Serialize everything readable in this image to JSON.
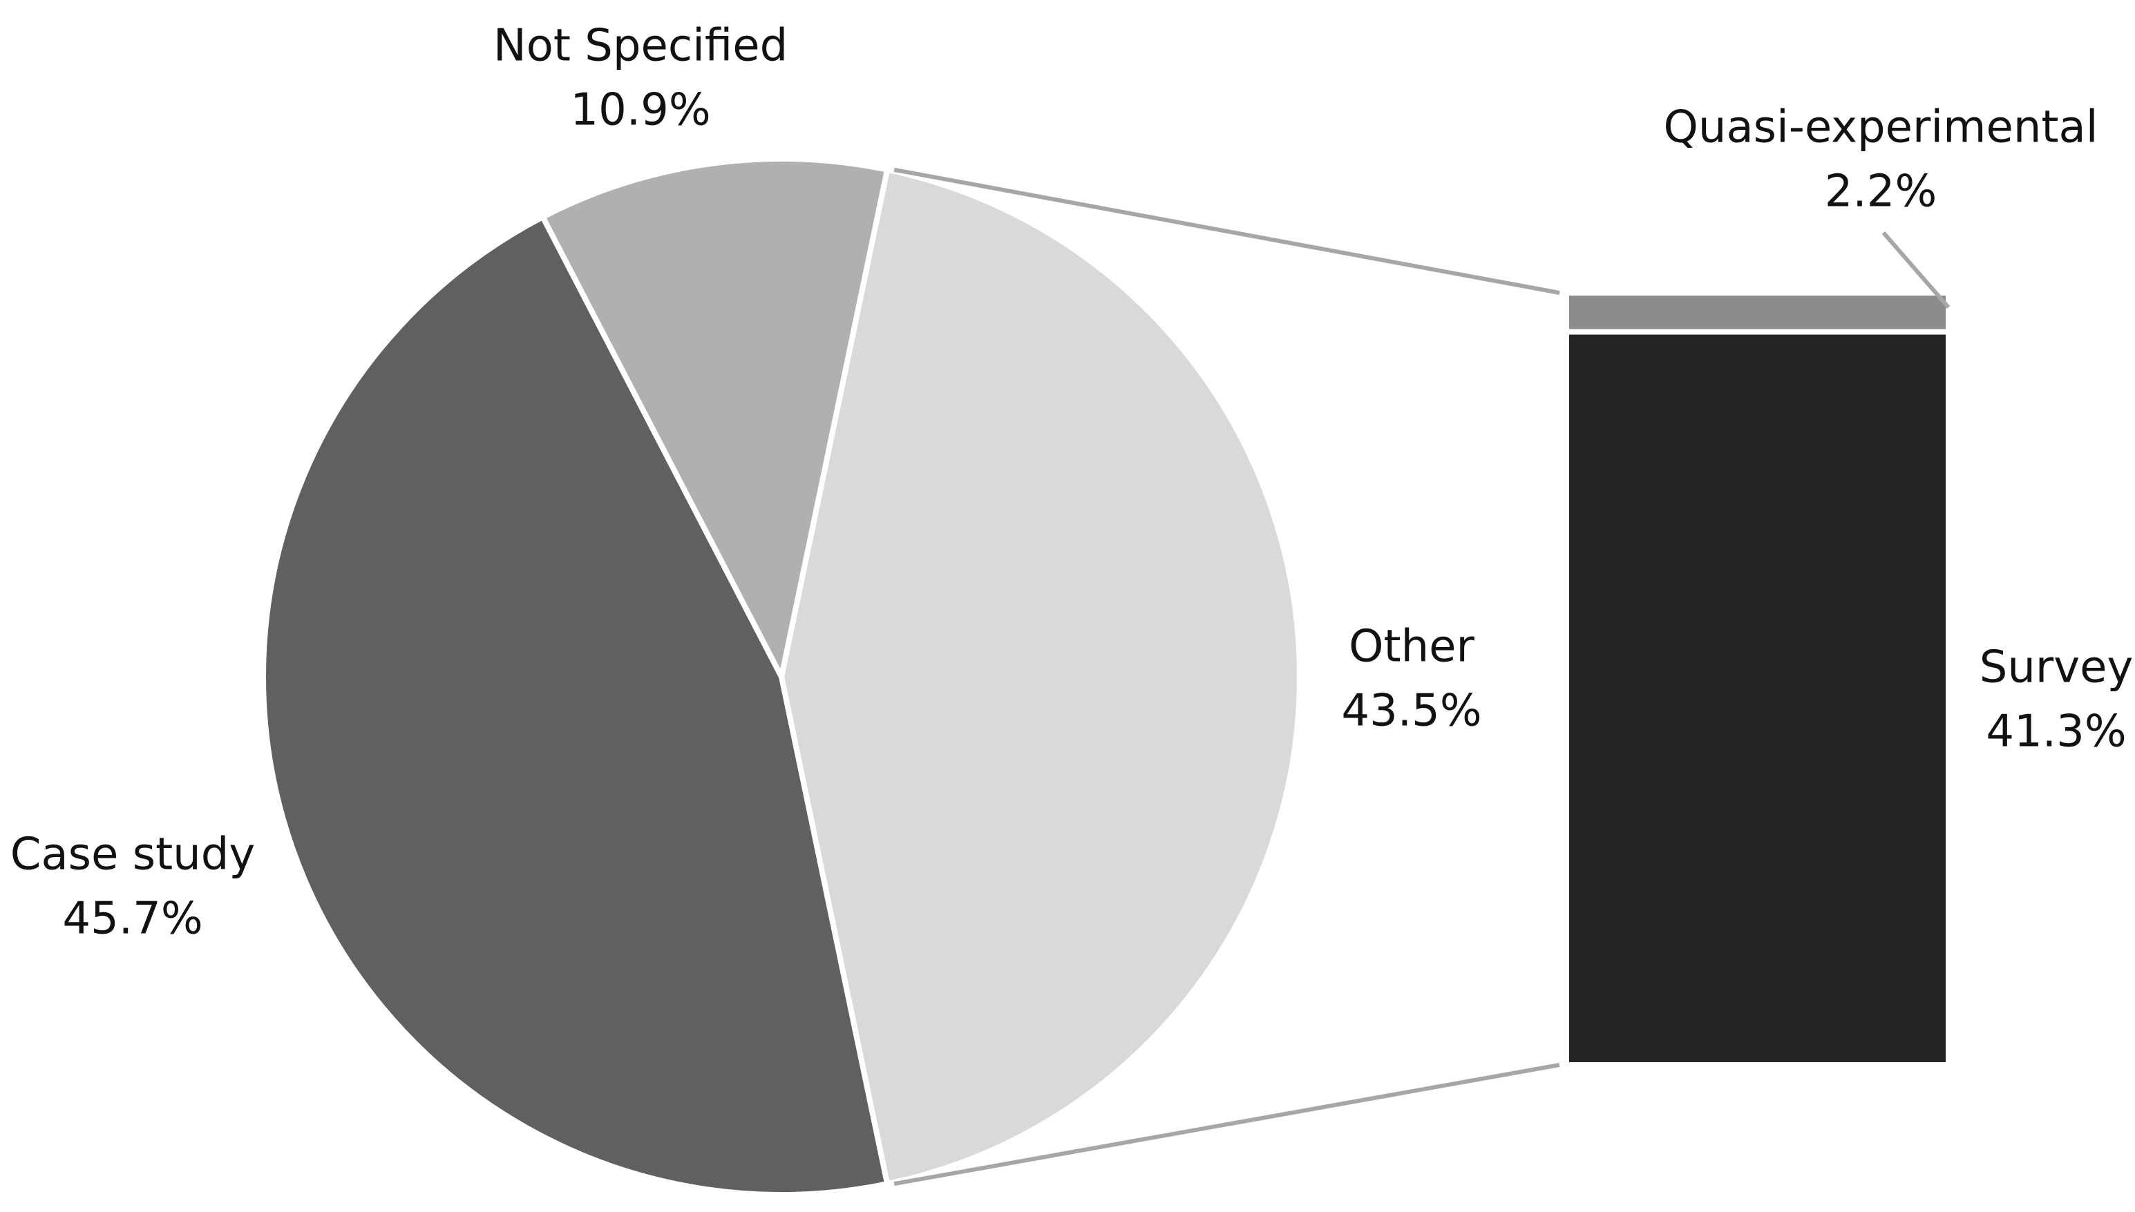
{
  "chart_data": {
    "type": "bar-of-pie",
    "categories": [
      "Other",
      "Case study",
      "Not Specified"
    ],
    "values": [
      43.5,
      45.7,
      10.9
    ],
    "value_labels": [
      "43.5%",
      "45.7%",
      "10.9%"
    ],
    "colors": [
      "#d9d9d9",
      "#606060",
      "#b0b0b0"
    ],
    "breakdown": {
      "categories": [
        "Quasi-experimental",
        "Survey"
      ],
      "values": [
        2.2,
        41.3
      ],
      "value_labels": [
        "2.2%",
        "41.3%"
      ],
      "colors": [
        "#8c8c8c",
        "#232323"
      ]
    }
  }
}
